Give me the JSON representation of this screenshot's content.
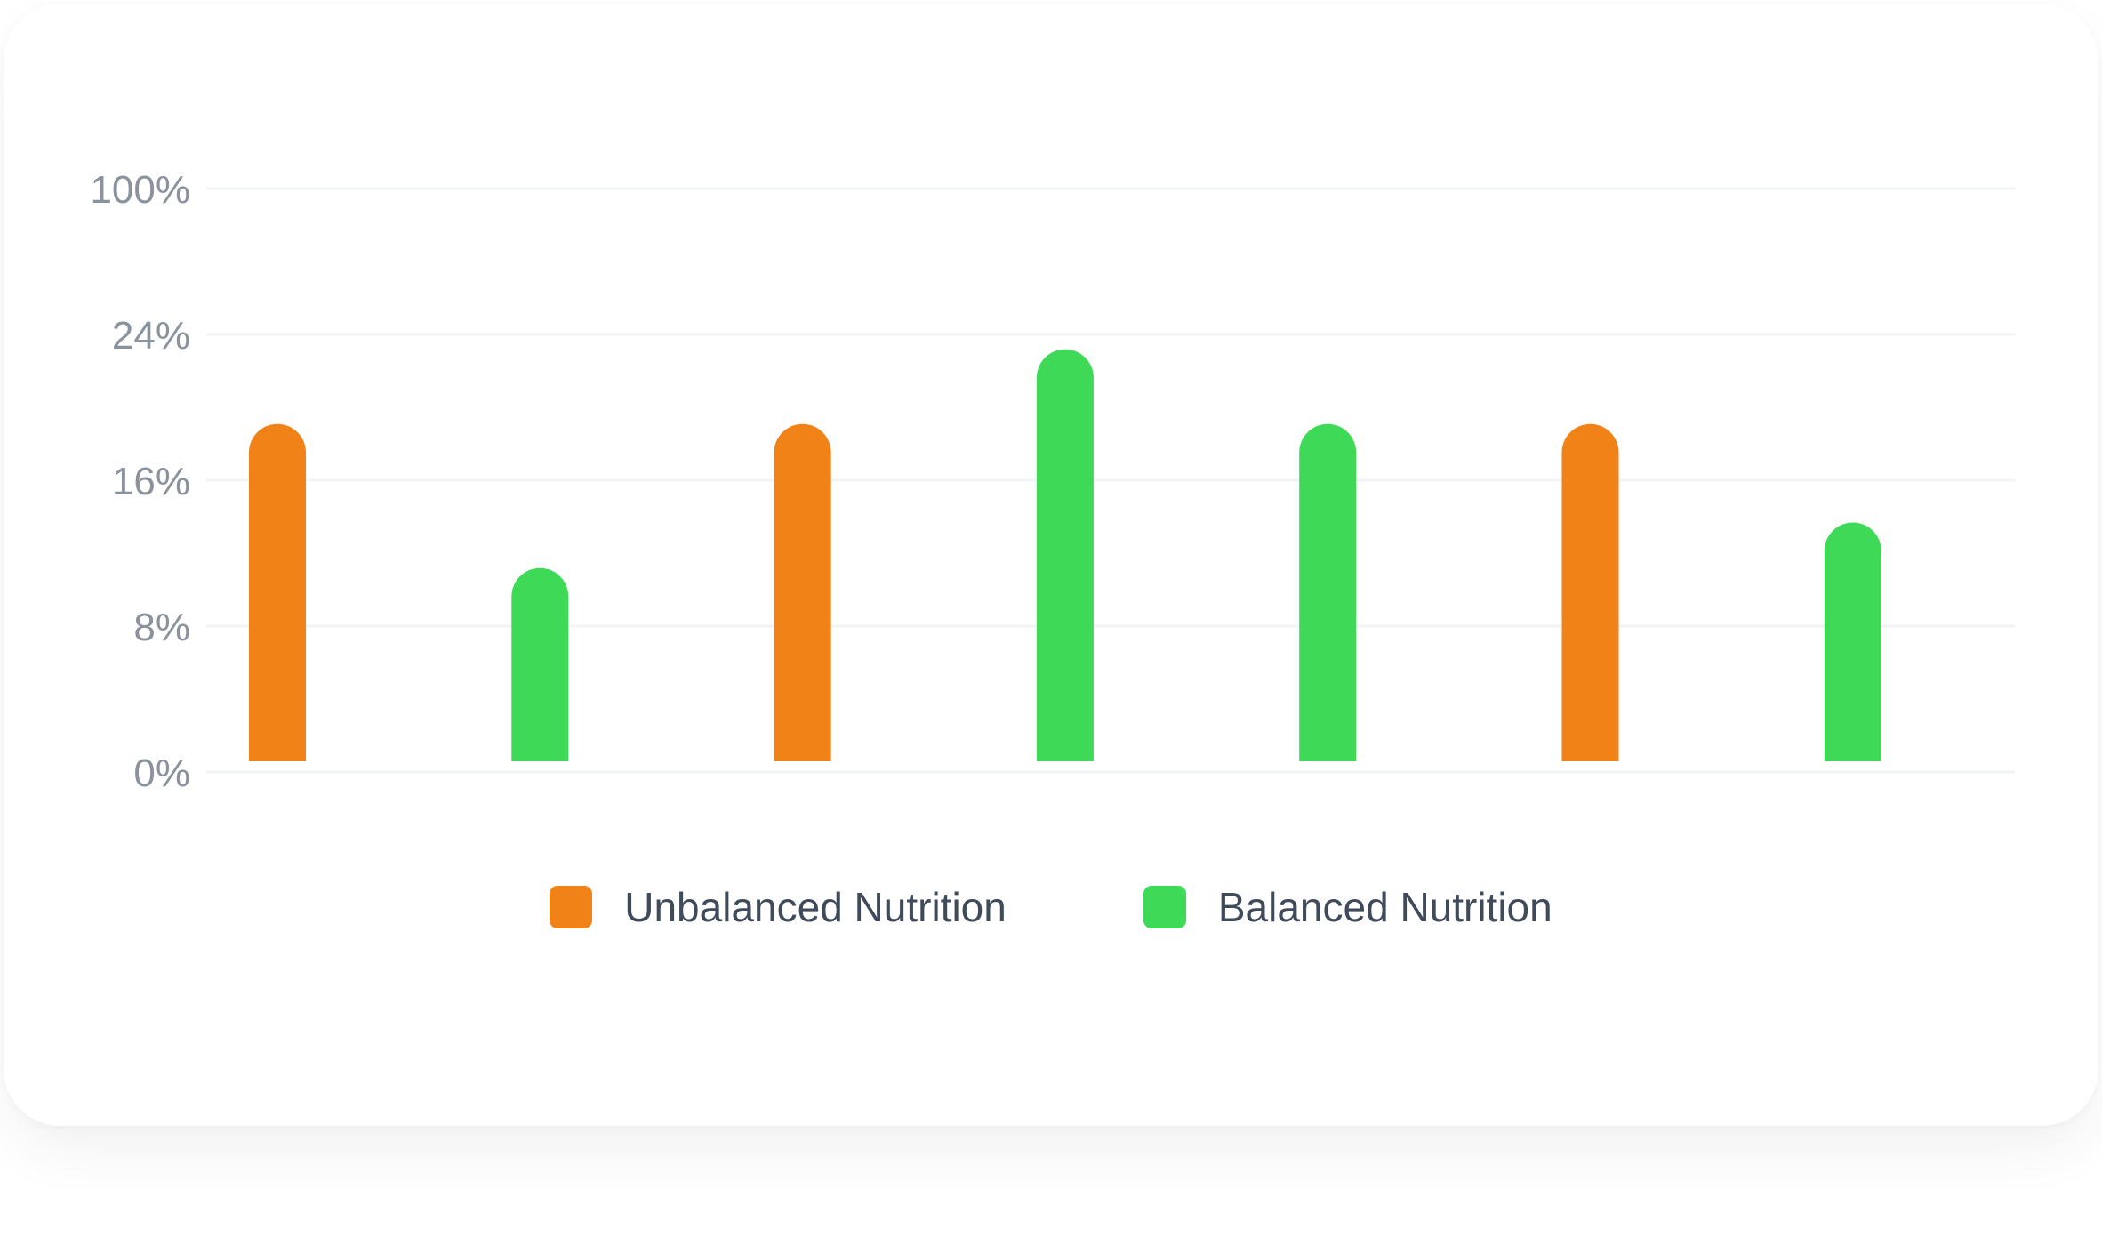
{
  "chart_data": {
    "type": "bar",
    "title": "",
    "xlabel": "",
    "ylabel": "",
    "y_ticks": [
      "0%",
      "8%",
      "16%",
      "24%",
      "100%"
    ],
    "categories": [
      "",
      "",
      "",
      "",
      "",
      "",
      ""
    ],
    "bars": [
      {
        "series": "Unbalanced Nutrition",
        "value": 18.5
      },
      {
        "series": "Balanced Nutrition",
        "value": 10.6
      },
      {
        "series": "Unbalanced Nutrition",
        "value": 18.5
      },
      {
        "series": "Balanced Nutrition",
        "value": 22.6
      },
      {
        "series": "Balanced Nutrition",
        "value": 18.5
      },
      {
        "series": "Unbalanced Nutrition",
        "value": 18.5
      },
      {
        "series": "Balanced Nutrition",
        "value": 13.1
      }
    ],
    "series": [
      {
        "name": "Unbalanced Nutrition",
        "color": "#f08218"
      },
      {
        "name": "Balanced Nutrition",
        "color": "#3ed957"
      }
    ],
    "grid": true,
    "legend_position": "bottom-center"
  }
}
